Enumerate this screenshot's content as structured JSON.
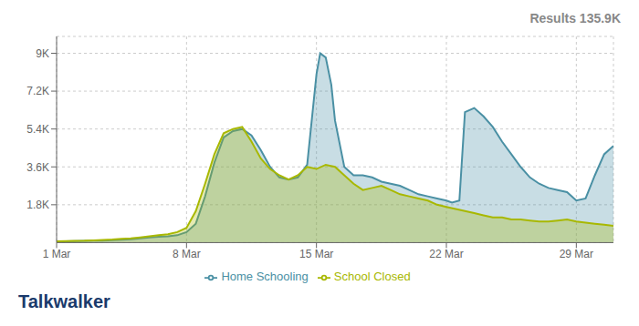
{
  "chart_data": {
    "type": "area",
    "title": "Results 135.9K",
    "annotations": [
      "Talkwalker"
    ],
    "xlim": [
      0,
      30
    ],
    "xticks": [
      {
        "value": 0,
        "label": "1 Mar"
      },
      {
        "value": 7,
        "label": "8 Mar"
      },
      {
        "value": 14,
        "label": "15 Mar"
      },
      {
        "value": 21,
        "label": "22 Mar"
      },
      {
        "value": 28,
        "label": "29 Mar"
      }
    ],
    "ylim": [
      0,
      9800
    ],
    "yticks": [
      {
        "value": 1800,
        "label": "1.8K"
      },
      {
        "value": 3600,
        "label": "3.6K"
      },
      {
        "value": 5400,
        "label": "5.4K"
      },
      {
        "value": 7200,
        "label": "7.2K"
      },
      {
        "value": 9000,
        "label": "9K"
      }
    ],
    "grid": true,
    "legend": "bottom",
    "series": [
      {
        "name": "Home Schooling",
        "color": "#4a90a4",
        "x": [
          0,
          0.5,
          1,
          1.5,
          2,
          2.5,
          3,
          3.5,
          4,
          4.5,
          5,
          5.5,
          6,
          6.5,
          7,
          7.5,
          8,
          8.5,
          9,
          9.5,
          10,
          10.5,
          11,
          11.5,
          12,
          12.5,
          13,
          13.5,
          14,
          14.2,
          14.5,
          14.8,
          15,
          15.5,
          16,
          16.5,
          17,
          17.5,
          18,
          18.5,
          19,
          19.5,
          20,
          20.5,
          21,
          21.3,
          21.7,
          22,
          22.5,
          23,
          23.5,
          24,
          24.5,
          25,
          25.5,
          26,
          26.5,
          27,
          27.5,
          28,
          28.5,
          29,
          29.5,
          30
        ],
        "values": [
          50,
          60,
          70,
          80,
          90,
          100,
          120,
          140,
          160,
          200,
          250,
          280,
          300,
          350,
          500,
          900,
          2200,
          3800,
          5000,
          5300,
          5400,
          5100,
          4400,
          3600,
          3100,
          3000,
          3100,
          3700,
          8000,
          9000,
          8800,
          7500,
          5800,
          3600,
          3200,
          3200,
          3100,
          2900,
          2800,
          2700,
          2500,
          2300,
          2200,
          2100,
          2000,
          1900,
          2000,
          6200,
          6400,
          6000,
          5500,
          4800,
          4200,
          3600,
          3100,
          2800,
          2600,
          2500,
          2400,
          2000,
          2100,
          3200,
          4200,
          4600
        ]
      },
      {
        "name": "School Closed",
        "color": "#a8b800",
        "x": [
          0,
          0.5,
          1,
          1.5,
          2,
          2.5,
          3,
          3.5,
          4,
          4.5,
          5,
          5.5,
          6,
          6.5,
          7,
          7.5,
          8,
          8.5,
          9,
          9.5,
          10,
          10.5,
          11,
          11.5,
          12,
          12.5,
          13,
          13.5,
          14,
          14.5,
          15,
          15.5,
          16,
          16.5,
          17,
          17.5,
          18,
          18.5,
          19,
          19.5,
          20,
          20.5,
          21,
          21.5,
          22,
          22.5,
          23,
          23.5,
          24,
          24.5,
          25,
          25.5,
          26,
          26.5,
          27,
          27.5,
          28,
          28.5,
          29,
          29.5,
          30
        ],
        "values": [
          60,
          70,
          80,
          90,
          110,
          130,
          150,
          180,
          200,
          250,
          300,
          350,
          400,
          500,
          700,
          1500,
          2800,
          4200,
          5200,
          5400,
          5500,
          4800,
          4000,
          3500,
          3200,
          3000,
          3200,
          3600,
          3500,
          3700,
          3600,
          3200,
          2800,
          2500,
          2600,
          2700,
          2500,
          2300,
          2200,
          2100,
          2000,
          1800,
          1700,
          1600,
          1500,
          1400,
          1300,
          1200,
          1200,
          1100,
          1100,
          1050,
          1000,
          1000,
          1050,
          1100,
          1000,
          950,
          900,
          850,
          800
        ]
      }
    ]
  }
}
